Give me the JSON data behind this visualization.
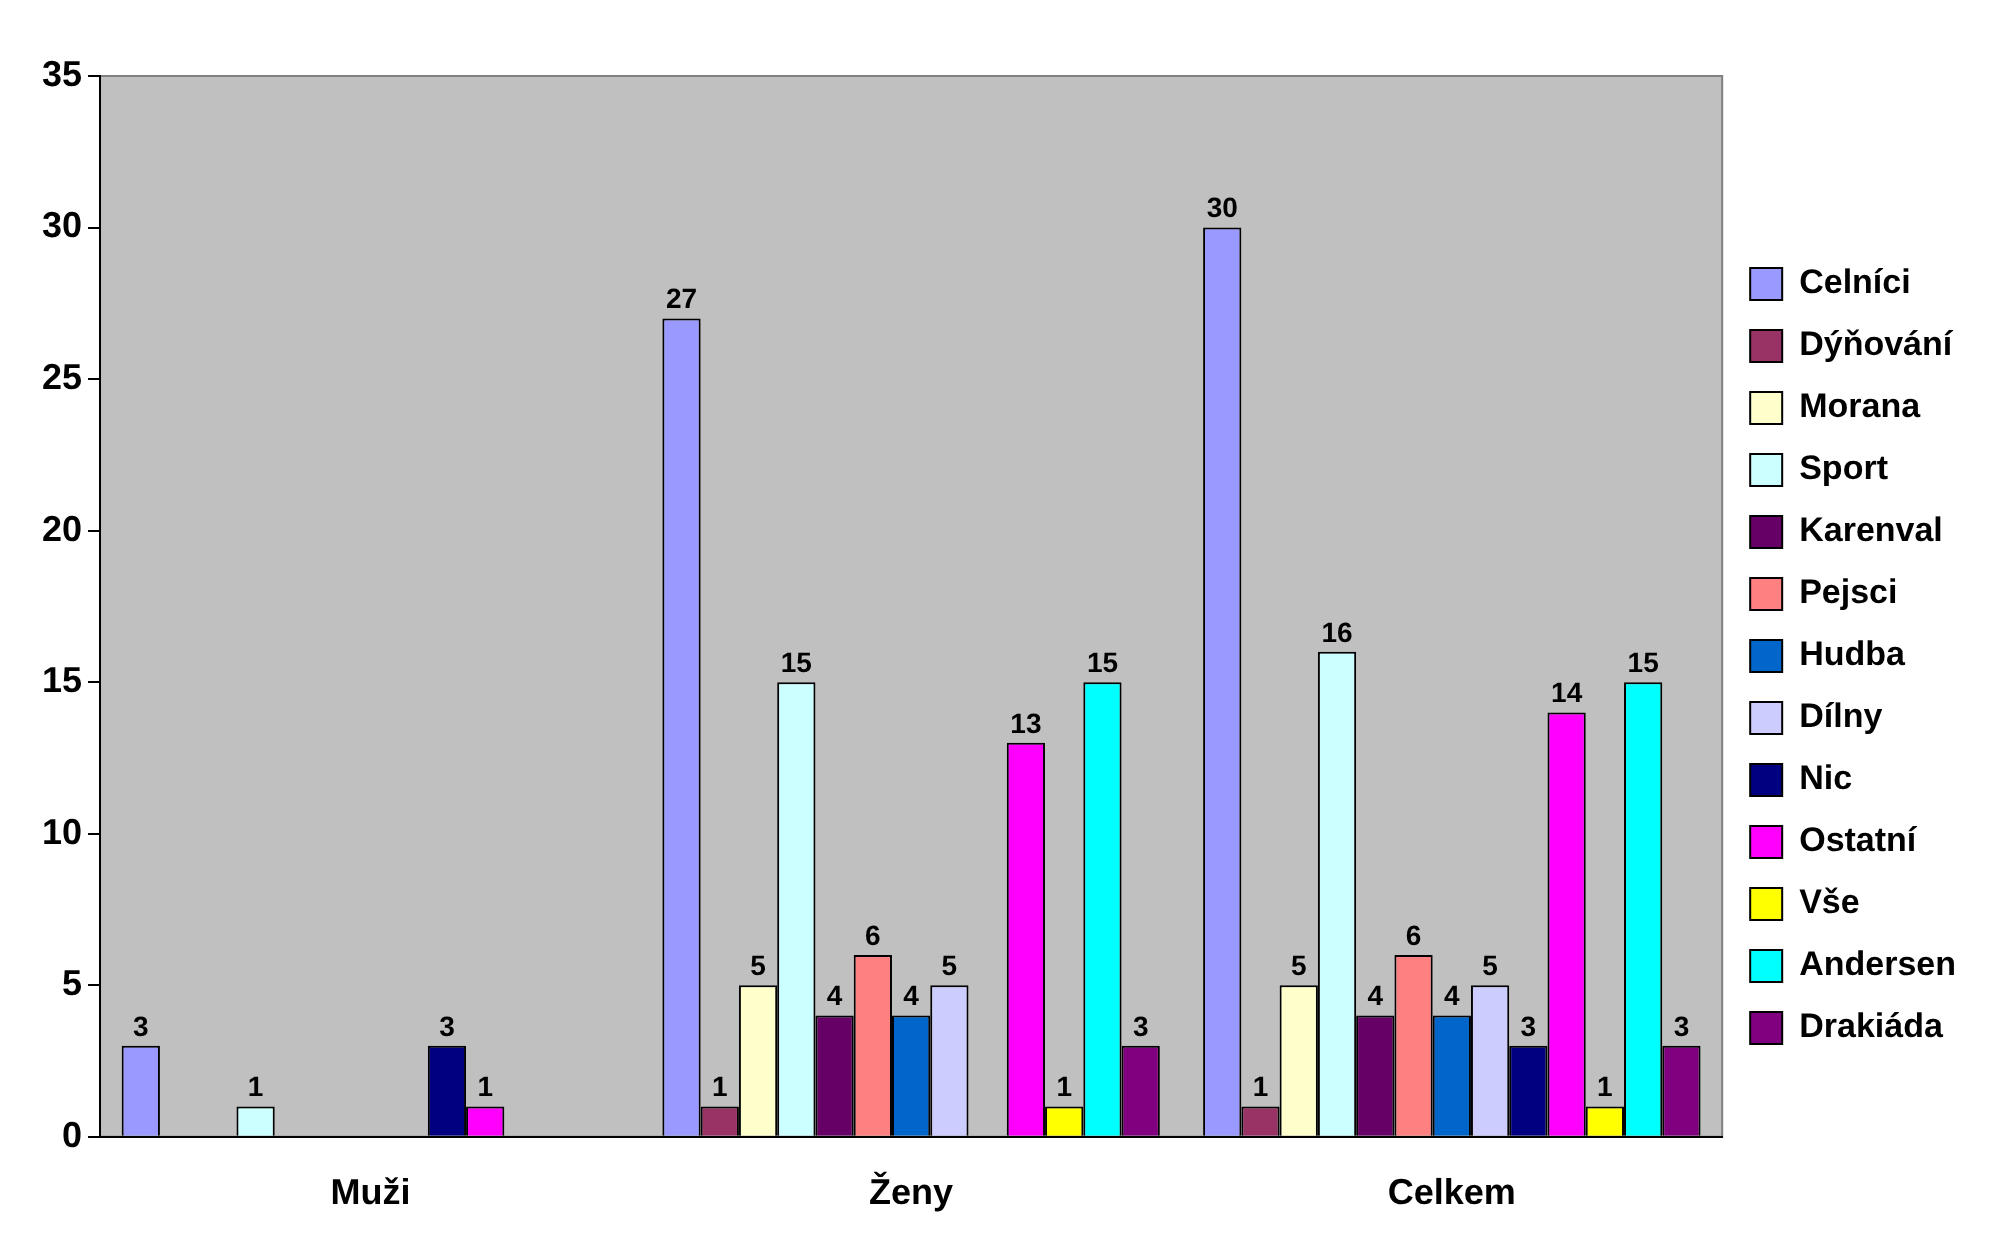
{
  "chart_data": {
    "type": "bar",
    "categories": [
      "Muži",
      "Ženy",
      "Celkem"
    ],
    "series": [
      {
        "name": "Celníci",
        "color": "#9999ff",
        "values": [
          3,
          27,
          30
        ]
      },
      {
        "name": "Dýňování",
        "color": "#993366",
        "values": [
          null,
          1,
          1
        ]
      },
      {
        "name": "Morana",
        "color": "#ffffcc",
        "values": [
          null,
          5,
          5
        ]
      },
      {
        "name": "Sport",
        "color": "#ccffff",
        "values": [
          1,
          15,
          16
        ]
      },
      {
        "name": "Karenval",
        "color": "#660066",
        "values": [
          null,
          4,
          4
        ]
      },
      {
        "name": "Pejsci",
        "color": "#ff8080",
        "values": [
          null,
          6,
          6
        ]
      },
      {
        "name": "Hudba",
        "color": "#0066cc",
        "values": [
          null,
          4,
          4
        ]
      },
      {
        "name": "Dílny",
        "color": "#ccccff",
        "values": [
          null,
          5,
          5
        ]
      },
      {
        "name": "Nic",
        "color": "#000080",
        "values": [
          3,
          null,
          3
        ]
      },
      {
        "name": "Ostatní",
        "color": "#ff00ff",
        "values": [
          1,
          13,
          14
        ]
      },
      {
        "name": "Vše",
        "color": "#ffff00",
        "values": [
          null,
          1,
          1
        ]
      },
      {
        "name": "Andersen",
        "color": "#00ffff",
        "values": [
          null,
          15,
          15
        ]
      },
      {
        "name": "Drakiáda",
        "color": "#800080",
        "values": [
          null,
          3,
          3
        ]
      }
    ],
    "ylim": [
      0,
      35
    ],
    "yticks": [
      0,
      5,
      10,
      15,
      20,
      25,
      30,
      35
    ],
    "grid": false,
    "legend": "right",
    "data_labels": true
  }
}
